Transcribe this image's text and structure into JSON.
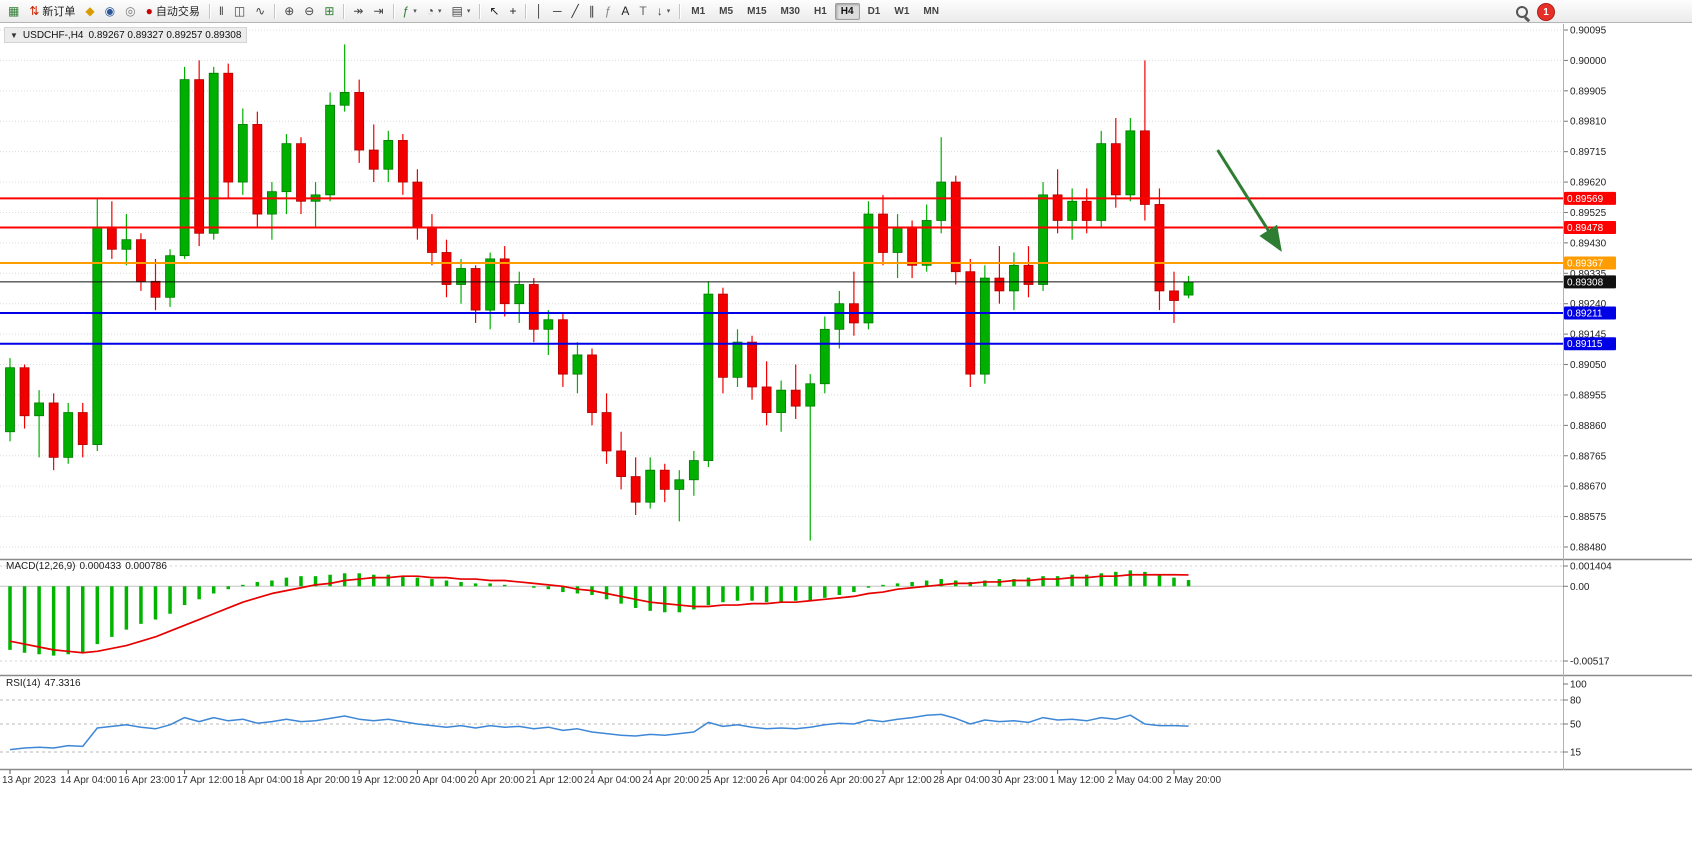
{
  "toolbar": {
    "caret_glyph": "▾",
    "notification_count": "1",
    "groups": [
      {
        "name": "trade-group",
        "items": [
          {
            "name": "new-chart-icon",
            "glyph": "▦",
            "color": "#2e7d32"
          },
          {
            "name": "new-order-button",
            "glyph": "⇅",
            "color": "#cc2200",
            "label": "新订单"
          },
          {
            "name": "market-watch-icon",
            "glyph": "◆",
            "color": "#d89c00"
          },
          {
            "name": "profile-icon",
            "glyph": "◉",
            "color": "#2b579a"
          },
          {
            "name": "refresh-icon",
            "glyph": "◎",
            "color": "#777777"
          },
          {
            "name": "autotrading-button",
            "glyph": "●",
            "color": "#cc0000",
            "label": "自动交易"
          }
        ]
      },
      {
        "name": "chart-type-group",
        "items": [
          {
            "name": "bar-chart-type-button",
            "glyph": "‖",
            "color": "#444444"
          },
          {
            "name": "candlestick-type-button",
            "glyph": "◫",
            "color": "#444444"
          },
          {
            "name": "line-chart-type-button",
            "glyph": "∿",
            "color": "#444444"
          }
        ]
      },
      {
        "name": "zoom-group",
        "items": [
          {
            "name": "zoom-in-button",
            "glyph": "⊕",
            "color": "#444444"
          },
          {
            "name": "zoom-out-button",
            "glyph": "⊖",
            "color": "#444444"
          },
          {
            "name": "tile-windows-button",
            "glyph": "⊞",
            "color": "#2e7d32"
          }
        ]
      },
      {
        "name": "scroll-group",
        "items": [
          {
            "name": "auto-scroll-button",
            "glyph": "↠",
            "color": "#444444"
          },
          {
            "name": "chart-shift-button",
            "glyph": "⇥",
            "color": "#444444"
          }
        ]
      },
      {
        "name": "insert-group",
        "items": [
          {
            "name": "indicators-button",
            "glyph": "ƒ",
            "color": "#2e7d32",
            "caret": true
          },
          {
            "name": "periods-button",
            "glyph": "◔",
            "color": "#444444",
            "caret": true
          },
          {
            "name": "templates-button",
            "glyph": "▤",
            "color": "#444444",
            "caret": true
          }
        ]
      },
      {
        "name": "cursor-group",
        "items": [
          {
            "name": "cursor-button",
            "glyph": "↖",
            "color": "#222222"
          },
          {
            "name": "crosshair-button",
            "glyph": "+",
            "color": "#222222"
          }
        ]
      },
      {
        "name": "draw-group",
        "items": [
          {
            "name": "vertical-line-button",
            "glyph": "│",
            "color": "#333333"
          },
          {
            "name": "horizontal-line-button",
            "glyph": "─",
            "color": "#333333"
          },
          {
            "name": "trendline-button",
            "glyph": "╱",
            "color": "#333333"
          },
          {
            "name": "channel-button",
            "glyph": "∥",
            "color": "#333333"
          },
          {
            "name": "fibonacci-button",
            "glyph": "ƒ",
            "color": "#888888"
          },
          {
            "name": "text-button",
            "glyph": "A",
            "color": "#222222"
          },
          {
            "name": "label-button",
            "glyph": "T",
            "color": "#666666"
          },
          {
            "name": "arrows-button",
            "glyph": "↓",
            "color": "#444444",
            "caret": true
          }
        ]
      }
    ],
    "timeframes": {
      "active": "H4",
      "items": [
        "M1",
        "M5",
        "M15",
        "M30",
        "H1",
        "H4",
        "D1",
        "W1",
        "MN"
      ]
    }
  },
  "chart": {
    "title": {
      "caret_glyph": "▼",
      "symbol_period": "USDCHF-,H4",
      "ohlc": "0.89267 0.89327 0.89257 0.89308"
    },
    "price_axis": {
      "labels": [
        "0.90095",
        "0.90000",
        "0.89905",
        "0.89810",
        "0.89715",
        "0.89620",
        "0.89525",
        "0.89430",
        "0.89335",
        "0.89240",
        "0.89145",
        "0.89050",
        "0.88955",
        "0.88860",
        "0.88765",
        "0.88670",
        "0.88575",
        "0.88480"
      ]
    },
    "levels": [
      {
        "name": "resistance-line-1",
        "price": 0.89569,
        "label": "0.89569",
        "color": "#ff0000",
        "width": 2
      },
      {
        "name": "resistance-line-2",
        "price": 0.89478,
        "label": "0.89478",
        "color": "#ff0000",
        "width": 2
      },
      {
        "name": "pivot-line",
        "price": 0.89367,
        "label": "0.89367",
        "color": "#ff9d00",
        "width": 2
      },
      {
        "name": "current-price-line",
        "price": 0.89308,
        "label": "0.89308",
        "color": "#111111",
        "width": 1
      },
      {
        "name": "support-line-1",
        "price": 0.89211,
        "label": "0.89211",
        "color": "#0000e6",
        "width": 2
      },
      {
        "name": "support-line-2",
        "price": 0.89115,
        "label": "0.89115",
        "color": "#0000e6",
        "width": 2
      }
    ],
    "arrow": {
      "name": "trend-arrow-annotation",
      "color": "#2e7d32",
      "from_index": 83,
      "from_price": 0.8972,
      "to_index": 87.3,
      "to_price": 0.8941
    }
  },
  "macd": {
    "title": "MACD(12,26,9)",
    "value_main": "0.000433",
    "value_signal": "0.000786",
    "histogram_color": "#00b400",
    "signal_color": "#e60000",
    "axis": [
      {
        "label": "0.001404",
        "value": 0.001404
      },
      {
        "label": "0.00",
        "value": 0
      },
      {
        "label": "-0.00517",
        "value": -0.00517
      }
    ]
  },
  "rsi": {
    "title": "RSI(14)",
    "value": "47.3316",
    "line_color": "#3d87d6",
    "axis": [
      {
        "label": "100",
        "value": 100,
        "dashed": false
      },
      {
        "label": "80",
        "value": 80,
        "dashed": true
      },
      {
        "label": "50",
        "value": 50,
        "dashed": true
      },
      {
        "label": "15",
        "value": 15,
        "dashed": true
      }
    ]
  },
  "time_axis": {
    "labels": [
      "13 Apr 2023",
      "14 Apr 04:00",
      "16 Apr 23:00",
      "17 Apr 12:00",
      "18 Apr 04:00",
      "18 Apr 20:00",
      "19 Apr 12:00",
      "20 Apr 04:00",
      "20 Apr 20:00",
      "21 Apr 12:00",
      "24 Apr 04:00",
      "24 Apr 20:00",
      "25 Apr 12:00",
      "26 Apr 04:00",
      "26 Apr 20:00",
      "27 Apr 12:00",
      "28 Apr 04:00",
      "30 Apr 23:00",
      "1 May 12:00",
      "2 May 04:00",
      "2 May 20:00"
    ]
  },
  "chart_data": {
    "type": "candlestick+indicators",
    "symbol": "USDCHF",
    "timeframe": "H4",
    "up_color": "#00b000",
    "down_color": "#f20000",
    "price_range": [
      0.8848,
      0.90095
    ],
    "candles": [
      [
        0.8884,
        0.8907,
        0.8881,
        0.8904
      ],
      [
        0.8904,
        0.8905,
        0.8885,
        0.8889
      ],
      [
        0.8889,
        0.8897,
        0.8876,
        0.8893
      ],
      [
        0.8893,
        0.8896,
        0.8872,
        0.8876
      ],
      [
        0.8876,
        0.8893,
        0.8874,
        0.889
      ],
      [
        0.889,
        0.8893,
        0.8876,
        0.888
      ],
      [
        0.888,
        0.8957,
        0.8878,
        0.8948
      ],
      [
        0.8948,
        0.8956,
        0.8938,
        0.8941
      ],
      [
        0.8941,
        0.8952,
        0.8936,
        0.8944
      ],
      [
        0.8944,
        0.8946,
        0.8928,
        0.8931
      ],
      [
        0.8931,
        0.8938,
        0.8922,
        0.8926
      ],
      [
        0.8926,
        0.8941,
        0.8923,
        0.8939
      ],
      [
        0.8939,
        0.8998,
        0.8938,
        0.8994
      ],
      [
        0.8994,
        0.9,
        0.8942,
        0.8946
      ],
      [
        0.8946,
        0.8998,
        0.8944,
        0.8996
      ],
      [
        0.8996,
        0.8999,
        0.8957,
        0.8962
      ],
      [
        0.8962,
        0.8985,
        0.8958,
        0.898
      ],
      [
        0.898,
        0.8984,
        0.8948,
        0.8952
      ],
      [
        0.8952,
        0.8962,
        0.8944,
        0.8959
      ],
      [
        0.8959,
        0.8977,
        0.8952,
        0.8974
      ],
      [
        0.8974,
        0.8976,
        0.8952,
        0.8956
      ],
      [
        0.8956,
        0.8962,
        0.8948,
        0.8958
      ],
      [
        0.8958,
        0.899,
        0.8956,
        0.8986
      ],
      [
        0.8986,
        0.9005,
        0.8984,
        0.899
      ],
      [
        0.899,
        0.8994,
        0.8968,
        0.8972
      ],
      [
        0.8972,
        0.898,
        0.8962,
        0.8966
      ],
      [
        0.8966,
        0.8978,
        0.8962,
        0.8975
      ],
      [
        0.8975,
        0.8977,
        0.8958,
        0.8962
      ],
      [
        0.8962,
        0.8966,
        0.8944,
        0.8948
      ],
      [
        0.8948,
        0.8952,
        0.8936,
        0.894
      ],
      [
        0.894,
        0.8944,
        0.8926,
        0.893
      ],
      [
        0.893,
        0.8938,
        0.8924,
        0.8935
      ],
      [
        0.8935,
        0.8936,
        0.8918,
        0.8922
      ],
      [
        0.8922,
        0.894,
        0.8916,
        0.8938
      ],
      [
        0.8938,
        0.8942,
        0.892,
        0.8924
      ],
      [
        0.8924,
        0.8934,
        0.8918,
        0.893
      ],
      [
        0.893,
        0.8932,
        0.8912,
        0.8916
      ],
      [
        0.8916,
        0.8922,
        0.8908,
        0.8919
      ],
      [
        0.8919,
        0.8921,
        0.8898,
        0.8902
      ],
      [
        0.8902,
        0.8912,
        0.8896,
        0.8908
      ],
      [
        0.8908,
        0.891,
        0.8886,
        0.889
      ],
      [
        0.889,
        0.8896,
        0.8874,
        0.8878
      ],
      [
        0.8878,
        0.8884,
        0.8866,
        0.887
      ],
      [
        0.887,
        0.8876,
        0.8858,
        0.8862
      ],
      [
        0.8862,
        0.8876,
        0.886,
        0.8872
      ],
      [
        0.8872,
        0.8874,
        0.8862,
        0.8866
      ],
      [
        0.8866,
        0.8872,
        0.8856,
        0.8869
      ],
      [
        0.8869,
        0.8878,
        0.8864,
        0.8875
      ],
      [
        0.8875,
        0.8931,
        0.8873,
        0.8927
      ],
      [
        0.8927,
        0.8929,
        0.8896,
        0.8901
      ],
      [
        0.8901,
        0.8916,
        0.8898,
        0.8912
      ],
      [
        0.8912,
        0.8914,
        0.8894,
        0.8898
      ],
      [
        0.8898,
        0.8906,
        0.8886,
        0.889
      ],
      [
        0.889,
        0.89,
        0.8884,
        0.8897
      ],
      [
        0.8897,
        0.8905,
        0.8888,
        0.8892
      ],
      [
        0.8892,
        0.8902,
        0.885,
        0.8899
      ],
      [
        0.8899,
        0.892,
        0.8896,
        0.8916
      ],
      [
        0.8916,
        0.8928,
        0.891,
        0.8924
      ],
      [
        0.8924,
        0.8934,
        0.8914,
        0.8918
      ],
      [
        0.8918,
        0.8956,
        0.8916,
        0.8952
      ],
      [
        0.8952,
        0.8958,
        0.8936,
        0.894
      ],
      [
        0.894,
        0.8952,
        0.8932,
        0.8948
      ],
      [
        0.8948,
        0.895,
        0.8932,
        0.8936
      ],
      [
        0.8936,
        0.8955,
        0.8934,
        0.895
      ],
      [
        0.895,
        0.8976,
        0.8946,
        0.8962
      ],
      [
        0.8962,
        0.8964,
        0.893,
        0.8934
      ],
      [
        0.8934,
        0.8938,
        0.8898,
        0.8902
      ],
      [
        0.8902,
        0.8936,
        0.8899,
        0.8932
      ],
      [
        0.8932,
        0.8942,
        0.8924,
        0.8928
      ],
      [
        0.8928,
        0.894,
        0.8922,
        0.8936
      ],
      [
        0.8936,
        0.8942,
        0.8926,
        0.893
      ],
      [
        0.893,
        0.8962,
        0.8928,
        0.8958
      ],
      [
        0.8958,
        0.8966,
        0.8946,
        0.895
      ],
      [
        0.895,
        0.896,
        0.8944,
        0.8956
      ],
      [
        0.8956,
        0.896,
        0.8946,
        0.895
      ],
      [
        0.895,
        0.8978,
        0.8948,
        0.8974
      ],
      [
        0.8974,
        0.8982,
        0.8954,
        0.8958
      ],
      [
        0.8958,
        0.8982,
        0.8956,
        0.8978
      ],
      [
        0.8978,
        0.9,
        0.895,
        0.8955
      ],
      [
        0.8955,
        0.896,
        0.8922,
        0.8928
      ],
      [
        0.8928,
        0.8934,
        0.8918,
        0.8925
      ],
      [
        0.89267,
        0.89327,
        0.89257,
        0.89308
      ]
    ],
    "macd": {
      "histogram": [
        -0.0044,
        -0.0046,
        -0.0047,
        -0.0048,
        -0.0047,
        -0.0046,
        -0.004,
        -0.0035,
        -0.003,
        -0.0026,
        -0.0023,
        -0.0019,
        -0.0013,
        -0.0009,
        -0.0005,
        -0.0002,
        0.0001,
        0.0003,
        0.0004,
        0.0006,
        0.0007,
        0.0007,
        0.0008,
        0.0009,
        0.0009,
        0.0008,
        0.0008,
        0.0007,
        0.0006,
        0.0005,
        0.0004,
        0.0003,
        0.0002,
        0.0002,
        0.0001,
        0.0,
        -0.0001,
        -0.0002,
        -0.0004,
        -0.0005,
        -0.0006,
        -0.0009,
        -0.0012,
        -0.0015,
        -0.0017,
        -0.0018,
        -0.0018,
        -0.0016,
        -0.0013,
        -0.0011,
        -0.001,
        -0.001,
        -0.0011,
        -0.0011,
        -0.001,
        -0.001,
        -0.0008,
        -0.0006,
        -0.0004,
        -0.0001,
        0.0001,
        0.0002,
        0.0003,
        0.0004,
        0.0005,
        0.0004,
        0.0003,
        0.0004,
        0.0005,
        0.0005,
        0.0006,
        0.0007,
        0.0007,
        0.0008,
        0.0008,
        0.0009,
        0.001,
        0.0011,
        0.001,
        0.0008,
        0.0006,
        0.000433
      ],
      "signal": [
        -0.0038,
        -0.004,
        -0.0042,
        -0.0044,
        -0.0045,
        -0.0046,
        -0.0045,
        -0.0043,
        -0.0041,
        -0.0038,
        -0.0035,
        -0.0031,
        -0.0027,
        -0.0023,
        -0.0019,
        -0.0015,
        -0.0011,
        -0.0008,
        -0.0005,
        -0.0003,
        -0.0001,
        0.0001,
        0.0002,
        0.0004,
        0.0005,
        0.0006,
        0.0006,
        0.0007,
        0.0007,
        0.0006,
        0.0006,
        0.0005,
        0.0005,
        0.0004,
        0.0004,
        0.0003,
        0.0002,
        0.0001,
        0.0,
        -0.0002,
        -0.0003,
        -0.0005,
        -0.0007,
        -0.0009,
        -0.0011,
        -0.0012,
        -0.0013,
        -0.0014,
        -0.0014,
        -0.0013,
        -0.0013,
        -0.0012,
        -0.0012,
        -0.0011,
        -0.0011,
        -0.001,
        -0.0009,
        -0.0008,
        -0.0007,
        -0.0005,
        -0.0004,
        -0.0002,
        -0.0001,
        0.0,
        0.0001,
        0.0002,
        0.0002,
        0.0003,
        0.0003,
        0.0004,
        0.0004,
        0.0005,
        0.0005,
        0.0006,
        0.0006,
        0.0007,
        0.0007,
        0.0008,
        0.0008,
        0.0008,
        0.0008,
        0.000786
      ]
    },
    "rsi": [
      18,
      20,
      21,
      20,
      23,
      22,
      45,
      47,
      49,
      46,
      44,
      49,
      58,
      53,
      58,
      54,
      56,
      51,
      53,
      56,
      53,
      54,
      57,
      60,
      56,
      54,
      56,
      53,
      50,
      48,
      46,
      48,
      45,
      48,
      46,
      47,
      44,
      46,
      42,
      44,
      40,
      38,
      36,
      35,
      37,
      36,
      38,
      40,
      52,
      47,
      49,
      46,
      44,
      45,
      44,
      46,
      49,
      51,
      50,
      55,
      53,
      56,
      58,
      61,
      62,
      57,
      50,
      55,
      53,
      54,
      52,
      58,
      55,
      56,
      54,
      58,
      56,
      61,
      50,
      48,
      48,
      47.3316
    ]
  }
}
